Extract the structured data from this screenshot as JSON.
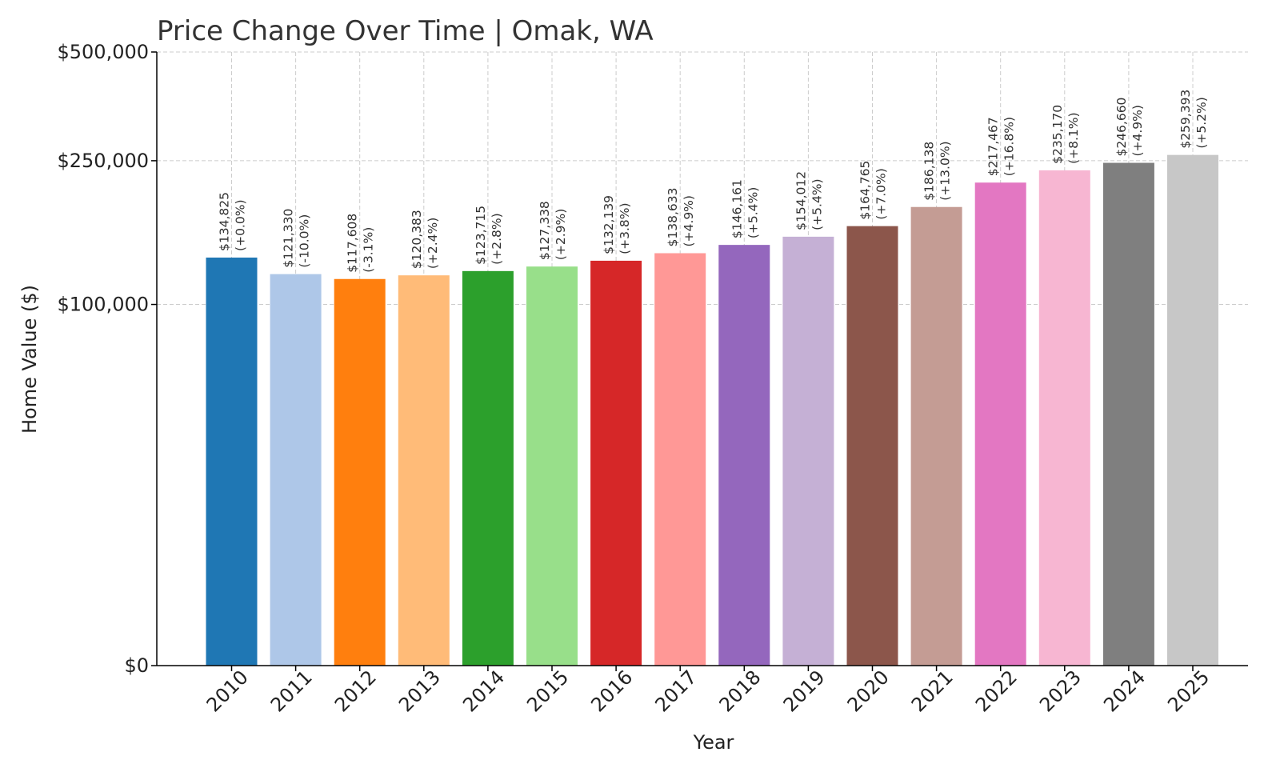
{
  "chart_data": {
    "type": "bar",
    "title": "Price Change Over Time | Omak, WA",
    "xlabel": "Year",
    "ylabel": "Home Value ($)",
    "y_scale": "symlog",
    "ylim": [
      0,
      500000
    ],
    "yticks": [
      0,
      100000,
      250000,
      500000
    ],
    "ytick_labels": [
      "$0",
      "$100,000",
      "$250,000",
      "$500,000"
    ],
    "grid": true,
    "categories": [
      "2010",
      "2011",
      "2012",
      "2013",
      "2014",
      "2015",
      "2016",
      "2017",
      "2018",
      "2019",
      "2020",
      "2021",
      "2022",
      "2023",
      "2024",
      "2025"
    ],
    "values": [
      134825,
      121330,
      117608,
      120383,
      123715,
      127338,
      132139,
      138633,
      146161,
      154012,
      164765,
      186138,
      217467,
      235170,
      246660,
      259393
    ],
    "value_labels": [
      "$134,825",
      "$121,330",
      "$117,608",
      "$120,383",
      "$123,715",
      "$127,338",
      "$132,139",
      "$138,633",
      "$146,161",
      "$154,012",
      "$164,765",
      "$186,138",
      "$217,467",
      "$235,170",
      "$246,660",
      "$259,393"
    ],
    "change_labels": [
      "(+0.0%)",
      "(-10.0%)",
      "(-3.1%)",
      "(+2.4%)",
      "(+2.8%)",
      "(+2.9%)",
      "(+3.8%)",
      "(+4.9%)",
      "(+5.4%)",
      "(+5.4%)",
      "(+7.0%)",
      "(+13.0%)",
      "(+16.8%)",
      "(+8.1%)",
      "(+4.9%)",
      "(+5.2%)"
    ],
    "colors": [
      "#1f77b4",
      "#aec7e8",
      "#ff7f0e",
      "#ffbb78",
      "#2ca02c",
      "#98df8a",
      "#d62728",
      "#ff9896",
      "#9467bd",
      "#c5b0d5",
      "#8c564b",
      "#c49c94",
      "#e377c2",
      "#f7b6d2",
      "#7f7f7f",
      "#c7c7c7"
    ]
  }
}
